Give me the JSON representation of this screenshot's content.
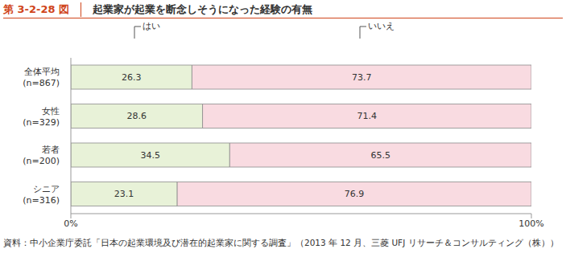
{
  "label": "第 3-2-28 図",
  "source": "資料：中小企業庁委託「日本の起業環境及び潜在的起業家に関する調査」（2013 年 12 月、三菱 UFJ リサーチ＆コンサルティング（株））",
  "chart_data": {
    "type": "bar",
    "title": "起業家が起業を断念しそうになった経験の有無",
    "orientation": "horizontal",
    "stacked": true,
    "data_labels": true,
    "grid": false,
    "categories": [
      "全体平均\n(n=867)",
      "女性\n(n=329)",
      "若者\n(n=200)",
      "シニア\n(n=316)"
    ],
    "series": [
      {
        "name": "はい",
        "color": "#e8f2d8",
        "values": [
          26.3,
          28.6,
          34.5,
          23.1
        ]
      },
      {
        "name": "いいえ",
        "color": "#f9dbe1",
        "values": [
          73.7,
          71.4,
          65.5,
          76.9
        ]
      }
    ],
    "xlim": [
      0,
      100
    ],
    "xticks": [
      {
        "value": 0,
        "label": "0%"
      },
      {
        "value": 100,
        "label": "100%"
      }
    ]
  }
}
